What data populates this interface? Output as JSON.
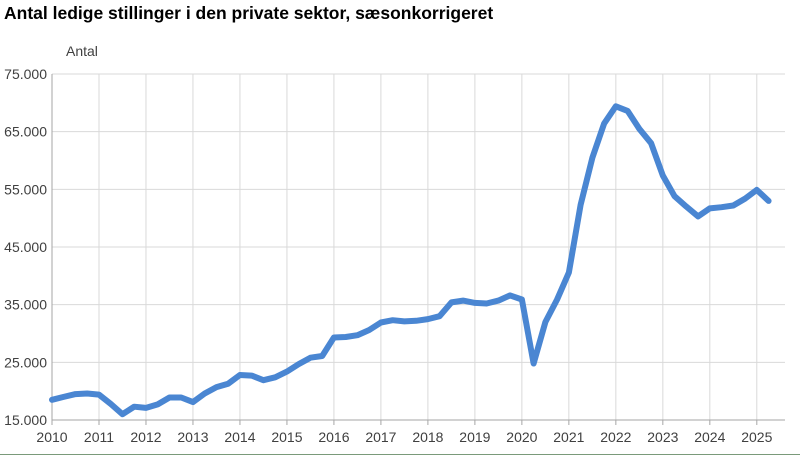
{
  "title": "Antal ledige stillinger i den private sektor, sæsonkorrigeret",
  "colors": {
    "line": "#4a86d2",
    "grid": "#d9d9d9",
    "axis": "#a6a6a6",
    "text": "#404040"
  },
  "chart_data": {
    "type": "line",
    "title": "Antal ledige stillinger i den private sektor, sæsonkorrigeret",
    "ylabel": "Antal",
    "xlabel": "",
    "ylim": [
      15000,
      75000
    ],
    "xlim": [
      2010,
      2025.6
    ],
    "grid": true,
    "y_ticks": [
      15000,
      25000,
      35000,
      45000,
      55000,
      65000,
      75000
    ],
    "y_tick_labels": [
      "15.000",
      "25.000",
      "35.000",
      "45.000",
      "55.000",
      "65.000",
      "75.000"
    ],
    "x_ticks": [
      2010,
      2011,
      2012,
      2013,
      2014,
      2015,
      2016,
      2017,
      2018,
      2019,
      2020,
      2021,
      2022,
      2023,
      2024,
      2025
    ],
    "x_tick_labels": [
      "2010",
      "2011",
      "2012",
      "2013",
      "2014",
      "2015",
      "2016",
      "2017",
      "2018",
      "2019",
      "2020",
      "2021",
      "2022",
      "2023",
      "2024",
      "2025"
    ],
    "series": [
      {
        "color": "#4a86d2",
        "x": [
          2010.0,
          2010.25,
          2010.5,
          2010.75,
          2011.0,
          2011.25,
          2011.5,
          2011.75,
          2012.0,
          2012.25,
          2012.5,
          2012.75,
          2013.0,
          2013.25,
          2013.5,
          2013.75,
          2014.0,
          2014.25,
          2014.5,
          2014.75,
          2015.0,
          2015.25,
          2015.5,
          2015.75,
          2016.0,
          2016.25,
          2016.5,
          2016.75,
          2017.0,
          2017.25,
          2017.5,
          2017.75,
          2018.0,
          2018.25,
          2018.5,
          2018.75,
          2019.0,
          2019.25,
          2019.5,
          2019.75,
          2020.0,
          2020.25,
          2020.5,
          2020.75,
          2021.0,
          2021.25,
          2021.5,
          2021.75,
          2022.0,
          2022.25,
          2022.5,
          2022.75,
          2023.0,
          2023.25,
          2023.5,
          2023.75,
          2024.0,
          2024.25,
          2024.5,
          2024.75,
          2025.0,
          2025.25
        ],
        "values": [
          18500,
          19000,
          19500,
          19600,
          19400,
          17800,
          16000,
          17300,
          17100,
          17700,
          18900,
          18900,
          18100,
          19600,
          20700,
          21300,
          22800,
          22700,
          21900,
          22400,
          23400,
          24700,
          25800,
          26100,
          29300,
          29400,
          29700,
          30600,
          31900,
          32300,
          32100,
          32200,
          32500,
          33000,
          35400,
          35700,
          35300,
          35200,
          35700,
          36600,
          35900,
          24800,
          32000,
          35900,
          40600,
          52300,
          60500,
          66400,
          69400,
          68600,
          65500,
          63000,
          57400,
          53800,
          52000,
          50300,
          51700,
          51900,
          52200,
          53400,
          54900,
          53000
        ]
      }
    ]
  }
}
